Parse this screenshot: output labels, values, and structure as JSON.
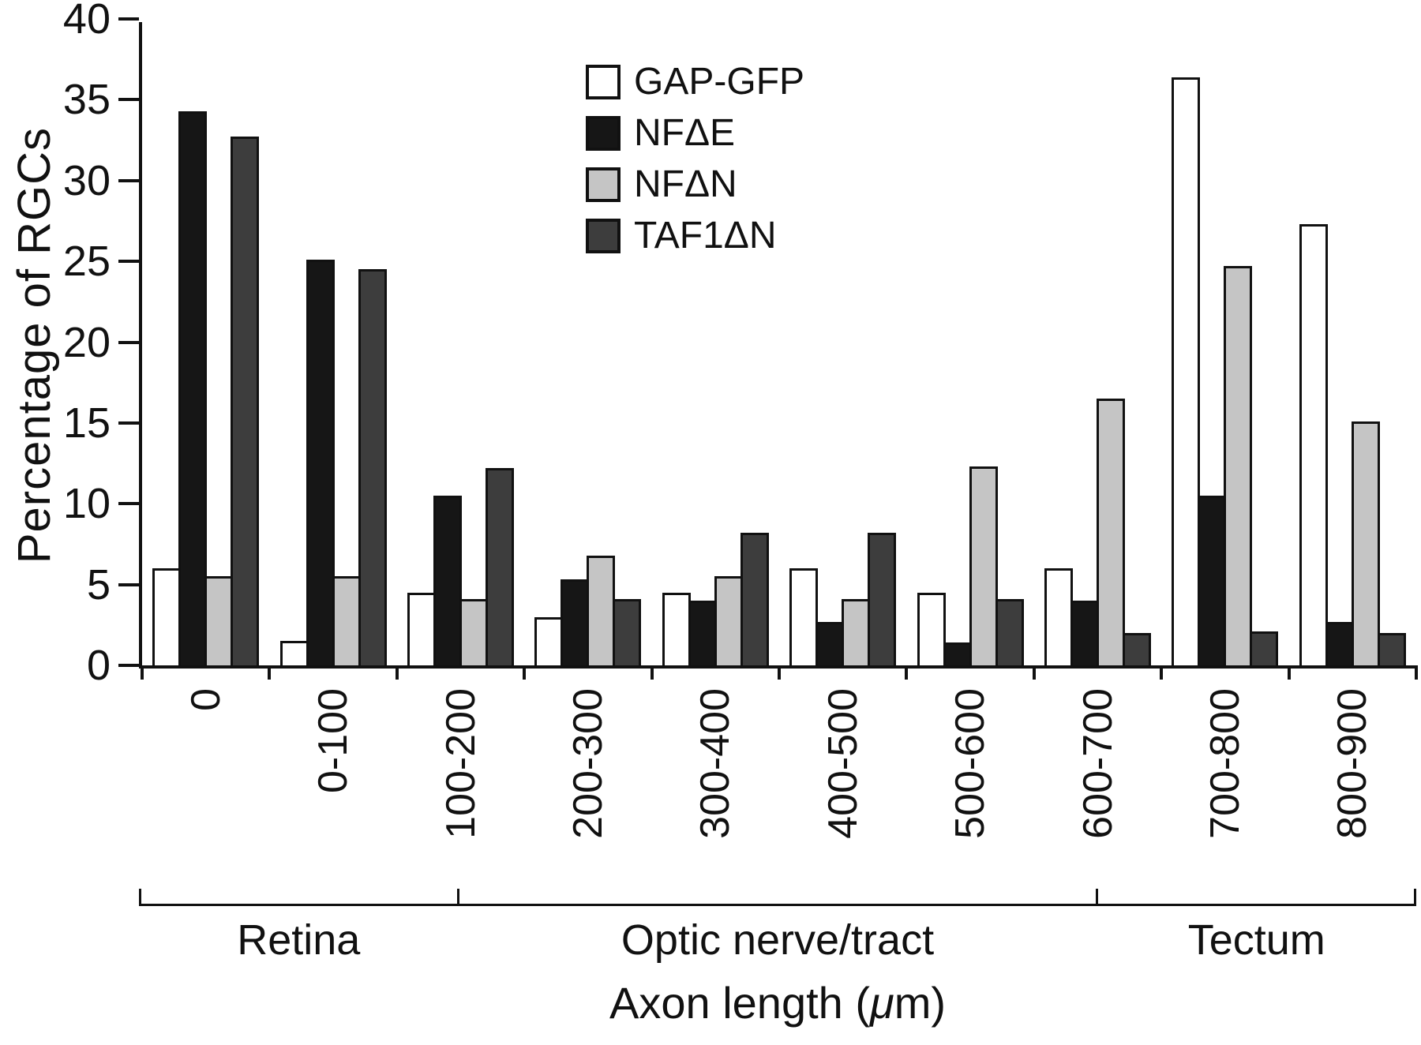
{
  "chart_data": {
    "type": "bar",
    "title": "",
    "ylabel": "Percentage of RGCs",
    "xlabel_parts": {
      "pre": "Axon length (",
      "mu": "μ",
      "post": "m)"
    },
    "ylim": [
      0,
      40
    ],
    "ytick_step": 5,
    "yticks": [
      0,
      5,
      10,
      15,
      20,
      25,
      30,
      35,
      40
    ],
    "grid": false,
    "legend_position": "top-center",
    "outline_color": "#111111",
    "background_color": "#ffffff",
    "categories": [
      "0",
      "0-100",
      "100-200",
      "200-300",
      "300-400",
      "400-500",
      "500-600",
      "600-700",
      "700-800",
      "800-900"
    ],
    "series": [
      {
        "name": "GAP-GFP",
        "color": "#ffffff",
        "values": [
          6.0,
          1.5,
          4.5,
          3.0,
          4.5,
          6.0,
          4.5,
          6.0,
          36.4,
          27.3
        ]
      },
      {
        "name": "NFΔE",
        "color": "#161616",
        "values": [
          34.3,
          25.1,
          10.5,
          5.3,
          4.0,
          2.7,
          1.4,
          4.0,
          10.5,
          2.7
        ]
      },
      {
        "name": "NFΔN",
        "color": "#c5c5c5",
        "values": [
          5.5,
          5.5,
          4.1,
          6.8,
          5.5,
          4.1,
          12.3,
          16.5,
          24.7,
          15.1
        ]
      },
      {
        "name": "TAF1ΔN",
        "color": "#3d3d3d",
        "values": [
          32.7,
          24.5,
          12.2,
          4.1,
          8.2,
          8.2,
          4.1,
          2.0,
          2.1,
          2.0
        ]
      }
    ],
    "regions": [
      {
        "label": "Retina",
        "start_frac": 0.0,
        "end_frac": 0.25
      },
      {
        "label": "Optic nerve/tract",
        "start_frac": 0.25,
        "end_frac": 0.75
      },
      {
        "label": "Tectum",
        "start_frac": 0.75,
        "end_frac": 1.0
      }
    ]
  }
}
